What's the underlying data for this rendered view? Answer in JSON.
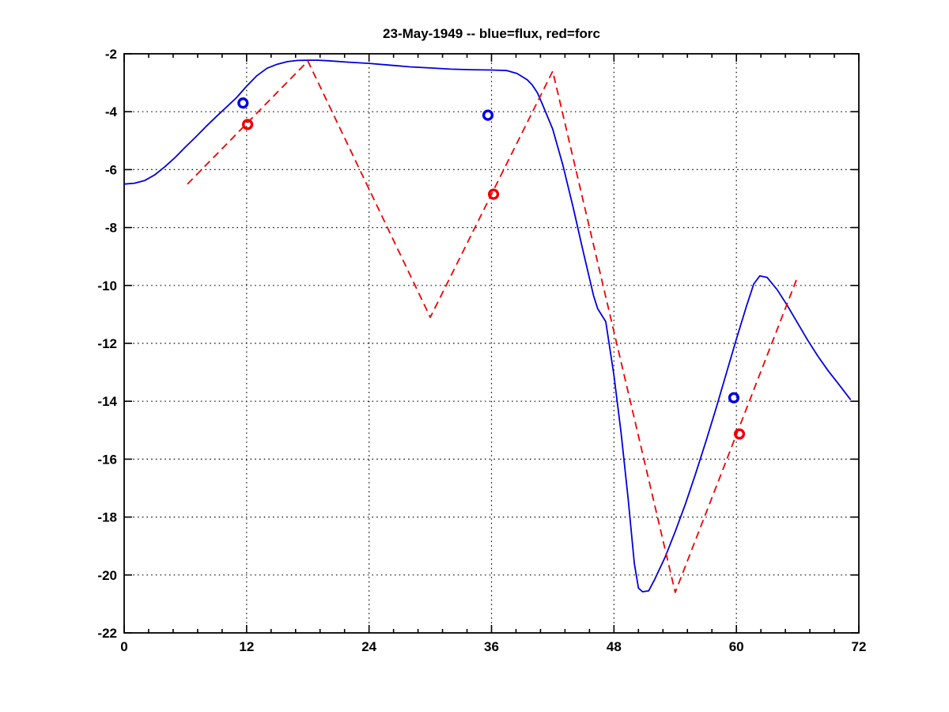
{
  "chart_data": {
    "type": "line",
    "title": "23-May-1949 -- blue=flux, red=forc",
    "xlabel": "",
    "ylabel": "",
    "xlim": [
      0,
      72
    ],
    "ylim": [
      -22,
      -2
    ],
    "x_ticks": [
      0,
      12,
      24,
      36,
      48,
      60,
      72
    ],
    "y_ticks": [
      -2,
      -4,
      -6,
      -8,
      -10,
      -12,
      -14,
      -16,
      -18,
      -20,
      -22
    ],
    "x_minor_step": 2.4,
    "grid": "dotted",
    "legend": "in title: blue=flux, red=forc",
    "colors": {
      "flux": "#0000e0",
      "forc": "#ee0000",
      "axis": "#000000",
      "background": "#ffffff"
    },
    "series": [
      {
        "name": "flux",
        "style": "solid",
        "color": "#0000e0",
        "points": [
          [
            0,
            -6.5
          ],
          [
            1,
            -6.47
          ],
          [
            2,
            -6.38
          ],
          [
            3,
            -6.18
          ],
          [
            4,
            -5.9
          ],
          [
            5,
            -5.58
          ],
          [
            6,
            -5.22
          ],
          [
            7,
            -4.88
          ],
          [
            8,
            -4.52
          ],
          [
            9,
            -4.18
          ],
          [
            10,
            -3.85
          ],
          [
            11,
            -3.52
          ],
          [
            12,
            -3.12
          ],
          [
            13,
            -2.76
          ],
          [
            14,
            -2.5
          ],
          [
            15,
            -2.36
          ],
          [
            16,
            -2.27
          ],
          [
            17,
            -2.23
          ],
          [
            18,
            -2.22
          ],
          [
            19,
            -2.22
          ],
          [
            20,
            -2.24
          ],
          [
            22,
            -2.29
          ],
          [
            24,
            -2.33
          ],
          [
            26,
            -2.39
          ],
          [
            28,
            -2.45
          ],
          [
            30,
            -2.49
          ],
          [
            32,
            -2.53
          ],
          [
            34,
            -2.55
          ],
          [
            36,
            -2.56
          ],
          [
            37.5,
            -2.58
          ],
          [
            38.5,
            -2.68
          ],
          [
            39.5,
            -2.9
          ],
          [
            40,
            -3.08
          ],
          [
            40.5,
            -3.35
          ],
          [
            41,
            -3.75
          ],
          [
            42,
            -4.6
          ],
          [
            43,
            -5.85
          ],
          [
            44,
            -7.3
          ],
          [
            45,
            -8.85
          ],
          [
            46,
            -10.35
          ],
          [
            46.4,
            -10.8
          ],
          [
            47.2,
            -11.25
          ],
          [
            48,
            -13.1
          ],
          [
            48.7,
            -15.1
          ],
          [
            49.4,
            -17.4
          ],
          [
            50,
            -19.6
          ],
          [
            50.4,
            -20.45
          ],
          [
            50.8,
            -20.58
          ],
          [
            51.4,
            -20.55
          ],
          [
            52,
            -20.15
          ],
          [
            53,
            -19.4
          ],
          [
            54,
            -18.5
          ],
          [
            55,
            -17.55
          ],
          [
            56,
            -16.5
          ],
          [
            57,
            -15.4
          ],
          [
            58,
            -14.25
          ],
          [
            59,
            -13.05
          ],
          [
            60,
            -11.85
          ],
          [
            61,
            -10.7
          ],
          [
            61.7,
            -9.95
          ],
          [
            62.3,
            -9.67
          ],
          [
            63,
            -9.72
          ],
          [
            64,
            -10.15
          ],
          [
            65,
            -10.7
          ],
          [
            66,
            -11.3
          ],
          [
            67,
            -11.9
          ],
          [
            68,
            -12.45
          ],
          [
            69,
            -12.95
          ],
          [
            70,
            -13.4
          ],
          [
            71.2,
            -13.95
          ]
        ]
      },
      {
        "name": "forc",
        "style": "dashed",
        "color": "#ee0000",
        "points": [
          [
            6.2,
            -6.5
          ],
          [
            18,
            -2.25
          ],
          [
            30,
            -11.1
          ],
          [
            42,
            -2.6
          ],
          [
            54,
            -20.6
          ],
          [
            66,
            -9.7
          ]
        ]
      }
    ],
    "markers": [
      {
        "name": "flux-obs",
        "color": "#0000e0",
        "shape": "open-circle",
        "points": [
          [
            11.65,
            -3.7
          ],
          [
            35.65,
            -4.12
          ],
          [
            59.75,
            -13.88
          ]
        ]
      },
      {
        "name": "forc-obs",
        "color": "#ee0000",
        "shape": "open-circle",
        "points": [
          [
            12.1,
            -4.44
          ],
          [
            36.2,
            -6.85
          ],
          [
            60.3,
            -15.13
          ]
        ]
      }
    ]
  }
}
